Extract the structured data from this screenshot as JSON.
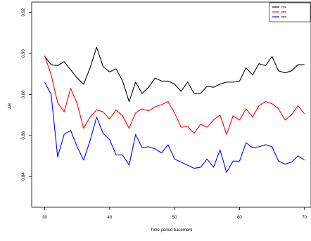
{
  "chart_data": {
    "type": "line",
    "xlabel": "Time period basement",
    "ylabel": "AR",
    "xlim": [
      28,
      71
    ],
    "ylim": [
      0.825,
      0.925
    ],
    "x_ticks": [
      30,
      40,
      50,
      60,
      70
    ],
    "x_tick_labels": [
      "30",
      "40",
      "50",
      "60",
      "70"
    ],
    "y_ticks": [
      0.84,
      0.86,
      0.88,
      0.9,
      0.92
    ],
    "y_tick_labels": [
      "0.84",
      "0.86",
      "0.88",
      "0.90",
      "0.92"
    ],
    "grid": false,
    "legend_position": "top-right",
    "x": [
      30,
      31,
      32,
      33,
      34,
      35,
      36,
      37,
      38,
      39,
      40,
      41,
      42,
      43,
      44,
      45,
      46,
      47,
      48,
      49,
      50,
      51,
      52,
      53,
      54,
      55,
      56,
      57,
      58,
      59,
      60,
      61,
      62,
      63,
      64,
      65,
      66,
      67,
      68,
      69,
      70
    ],
    "series": [
      {
        "name": "m=",
        "color": "#000000",
        "values": [
          0.8985,
          0.8945,
          0.894,
          0.896,
          0.892,
          0.888,
          0.885,
          0.893,
          0.903,
          0.8935,
          0.891,
          0.8925,
          0.8865,
          0.8765,
          0.886,
          0.8805,
          0.8835,
          0.888,
          0.8865,
          0.8865,
          0.885,
          0.8815,
          0.886,
          0.8805,
          0.8805,
          0.884,
          0.8835,
          0.885,
          0.886,
          0.886,
          0.8865,
          0.893,
          0.8895,
          0.895,
          0.894,
          0.8985,
          0.8915,
          0.8905,
          0.8915,
          0.8945,
          0.8945
        ]
      },
      {
        "name": "m=",
        "color": "#ff0000",
        "values": [
          0.899,
          0.8895,
          0.876,
          0.8715,
          0.883,
          0.8755,
          0.8635,
          0.869,
          0.8725,
          0.8715,
          0.868,
          0.8725,
          0.8695,
          0.8635,
          0.871,
          0.873,
          0.872,
          0.874,
          0.875,
          0.8765,
          0.871,
          0.864,
          0.8645,
          0.861,
          0.8655,
          0.864,
          0.8675,
          0.87,
          0.8605,
          0.8695,
          0.8675,
          0.873,
          0.869,
          0.8745,
          0.8765,
          0.8755,
          0.873,
          0.8675,
          0.87,
          0.8745,
          0.8705
        ]
      },
      {
        "name": "m=",
        "color": "#0000ff",
        "values": [
          0.886,
          0.88,
          0.8495,
          0.8605,
          0.8625,
          0.8545,
          0.848,
          0.8575,
          0.869,
          0.861,
          0.858,
          0.8505,
          0.8505,
          0.8455,
          0.8605,
          0.854,
          0.8545,
          0.8535,
          0.8515,
          0.8555,
          0.8485,
          0.847,
          0.8455,
          0.844,
          0.8445,
          0.8485,
          0.8445,
          0.853,
          0.842,
          0.8475,
          0.8475,
          0.8565,
          0.854,
          0.8545,
          0.8555,
          0.8545,
          0.8475,
          0.846,
          0.847,
          0.85,
          0.848
        ]
      }
    ]
  }
}
